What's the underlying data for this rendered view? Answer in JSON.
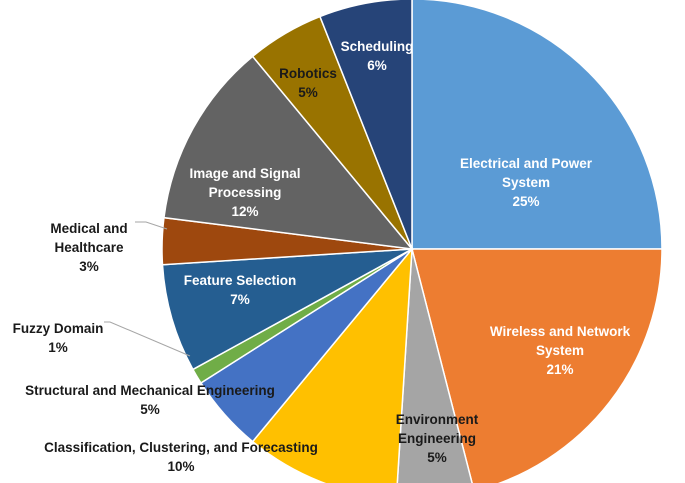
{
  "chart_data": {
    "type": "pie",
    "title": "",
    "slices": [
      {
        "name": "Electrical and Power System",
        "lines": [
          "Electrical and Power",
          "System"
        ],
        "value": 25,
        "pct_label": "25%",
        "color": "#5B9BD5",
        "text_color": "#ffffff",
        "leader": false
      },
      {
        "name": "Wireless and Network System",
        "lines": [
          "Wireless and Network",
          "System"
        ],
        "value": 21,
        "pct_label": "21%",
        "color": "#ED7D31",
        "text_color": "#ffffff",
        "leader": false
      },
      {
        "name": "Environment Engineering",
        "lines": [
          "Environment",
          "Engineering"
        ],
        "value": 5,
        "pct_label": "5%",
        "color": "#A5A5A5",
        "text_color": "#1a1a1a",
        "leader": false
      },
      {
        "name": "Classification, Clustering, and Forecasting",
        "lines": [
          "Classification, Clustering, and Forecasting"
        ],
        "value": 10,
        "pct_label": "10%",
        "color": "#FFC000",
        "text_color": "#1a1a1a",
        "leader": false
      },
      {
        "name": "Structural and Mechanical Engineering",
        "lines": [
          "Structural and Mechanical Engineering"
        ],
        "value": 5,
        "pct_label": "5%",
        "color": "#4472C4",
        "text_color": "#1a1a1a",
        "leader": false
      },
      {
        "name": "Fuzzy Domain",
        "lines": [
          "Fuzzy Domain"
        ],
        "value": 1,
        "pct_label": "1%",
        "color": "#70AD47",
        "text_color": "#1a1a1a",
        "leader": true
      },
      {
        "name": "Feature Selection",
        "lines": [
          "Feature Selection"
        ],
        "value": 7,
        "pct_label": "7%",
        "color": "#255E91",
        "text_color": "#ffffff",
        "leader": false
      },
      {
        "name": "Medical and Healthcare",
        "lines": [
          "Medical and",
          "Healthcare"
        ],
        "value": 3,
        "pct_label": "3%",
        "color": "#9E480E",
        "text_color": "#1a1a1a",
        "leader": true
      },
      {
        "name": "Image and Signal Processing",
        "lines": [
          "Image and Signal",
          "Processing"
        ],
        "value": 12,
        "pct_label": "12%",
        "color": "#636363",
        "text_color": "#ffffff",
        "leader": false
      },
      {
        "name": "Robotics",
        "lines": [
          "Robotics"
        ],
        "value": 5,
        "pct_label": "5%",
        "color": "#997300",
        "text_color": "#1a1a1a",
        "leader": false
      },
      {
        "name": "Scheduling",
        "lines": [
          "Scheduling"
        ],
        "value": 6,
        "pct_label": "6%",
        "color": "#264478",
        "text_color": "#ffffff",
        "leader": false
      }
    ]
  }
}
